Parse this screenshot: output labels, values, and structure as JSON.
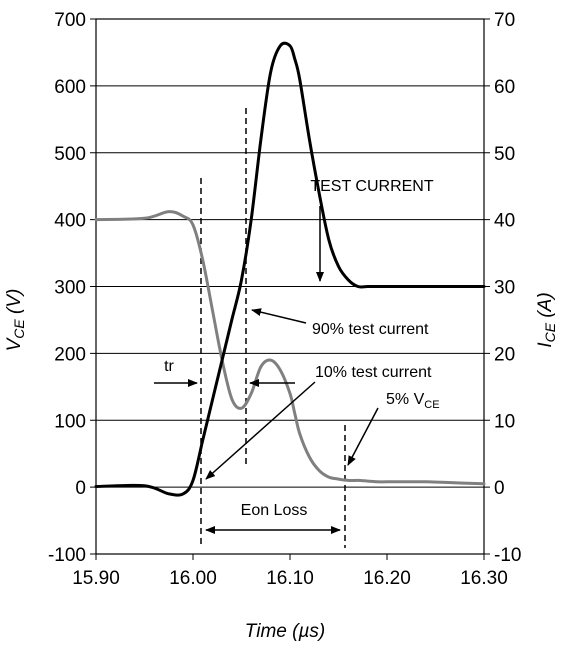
{
  "chart_data": {
    "type": "line",
    "x": [
      15.9,
      15.95,
      15.975,
      15.99,
      16.0,
      16.01,
      16.02,
      16.03,
      16.04,
      16.05,
      16.06,
      16.07,
      16.08,
      16.09,
      16.1,
      16.105,
      16.11,
      16.12,
      16.13,
      16.14,
      16.15,
      16.16,
      16.17,
      16.18,
      16.19,
      16.2,
      16.22,
      16.24,
      16.26,
      16.3
    ],
    "xlim": [
      15.9,
      16.3
    ],
    "xticks": [
      "15.90",
      "16.00",
      "16.10",
      "16.20",
      "16.30"
    ],
    "xtick_values": [
      15.9,
      16.0,
      16.1,
      16.2,
      16.3
    ],
    "xlabel": "Time (µs)",
    "ylabel_left_main": "V",
    "ylabel_left_sub": "CE",
    "ylabel_left_unit": " (V)",
    "ylabel_right_main": "I",
    "ylabel_right_sub": "CE",
    "ylabel_right_unit": " (A)",
    "ylim_left": [
      -100,
      700
    ],
    "ylim_right": [
      -10,
      70
    ],
    "yticks_left": [
      -100,
      0,
      100,
      200,
      300,
      400,
      500,
      600,
      700
    ],
    "yticks_right": [
      -10,
      0,
      10,
      20,
      30,
      40,
      50,
      60,
      70
    ],
    "grid": "horizontal",
    "series": [
      {
        "name": "VCE",
        "axis": "left",
        "color": "#808080",
        "values": [
          400,
          402,
          412,
          405,
          392,
          340,
          265,
          190,
          132,
          118,
          140,
          180,
          190,
          175,
          140,
          110,
          80,
          45,
          25,
          15,
          12,
          10,
          10,
          9,
          8,
          8,
          8,
          8,
          7,
          5
        ]
      },
      {
        "name": "ICE",
        "axis": "right",
        "color": "#000000",
        "values": [
          0.1,
          0.2,
          -1,
          -1,
          1,
          7,
          13,
          19,
          25,
          31,
          40,
          52,
          62,
          66,
          66,
          64,
          61,
          52,
          44,
          37,
          33,
          31,
          30,
          30,
          30,
          30,
          30,
          30,
          30,
          30
        ]
      }
    ],
    "annotations": {
      "test_current": "TEST CURRENT",
      "pct90": "90% test current",
      "pct10": "10% test current",
      "vce5_main": "5% V",
      "vce5_sub": "CE",
      "tr": "tr",
      "eon": "Eon Loss"
    }
  }
}
